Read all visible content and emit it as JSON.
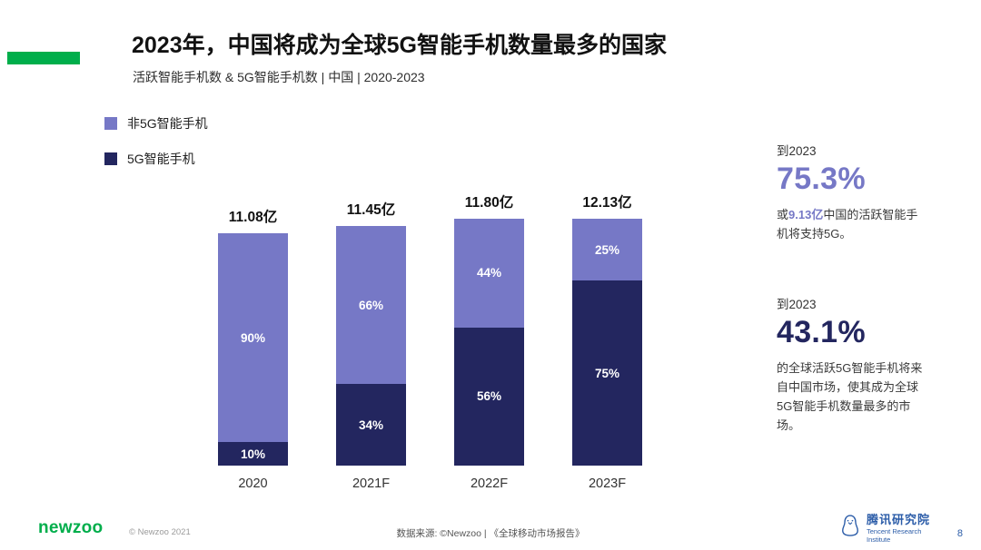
{
  "colors": {
    "green": "#00AE4B",
    "purple": "#7678C6",
    "navy": "#23265F",
    "tencent_blue": "#2B5CA8"
  },
  "header": {
    "title": "2023年，中国将成为全球5G智能手机数量最多的国家",
    "subtitle": "活跃智能手机数 & 5G智能手机数 | 中国 | 2020-2023"
  },
  "legend": [
    {
      "label": "非5G智能手机",
      "color": "#7678C6"
    },
    {
      "label": "5G智能手机",
      "color": "#23265F"
    }
  ],
  "chart_data": {
    "type": "bar",
    "stacked": true,
    "unit": "亿",
    "categories": [
      "2020",
      "2021F",
      "2022F",
      "2023F"
    ],
    "totals": [
      "11.08亿",
      "11.45亿",
      "11.80亿",
      "12.13亿"
    ],
    "totals_numeric": [
      11.08,
      11.45,
      11.8,
      12.13
    ],
    "series": [
      {
        "name": "非5G智能手机",
        "color": "#7678C6",
        "percent": [
          90,
          66,
          44,
          25
        ]
      },
      {
        "name": "5G智能手机",
        "color": "#23265F",
        "percent": [
          10,
          34,
          56,
          75
        ]
      }
    ],
    "title": "活跃智能手机数 & 5G智能手机数 | 中国 | 2020-2023",
    "xlabel": "",
    "ylabel": "",
    "legend_position": "top-left",
    "grid": false
  },
  "callouts": [
    {
      "kicker": "到2023",
      "value": "75.3%",
      "color": "#7678C6",
      "desc_prefix": "或",
      "desc_highlight": "9.13亿",
      "desc_suffix": "中国的活跃智能手机将支持5G。"
    },
    {
      "kicker": "到2023",
      "value": "43.1%",
      "color": "#23265F",
      "desc": "的全球活跃5G智能手机将来自中国市场，使其成为全球5G智能手机数量最多的市场。"
    }
  ],
  "footer": {
    "logo": "newzoo",
    "copyright": "© Newzoo 2021",
    "source": "数据来源: ©Newzoo | 《全球移动市场报告》",
    "org_cn": "腾讯研究院",
    "org_en": "Tencent Research Institute",
    "page": "8"
  }
}
